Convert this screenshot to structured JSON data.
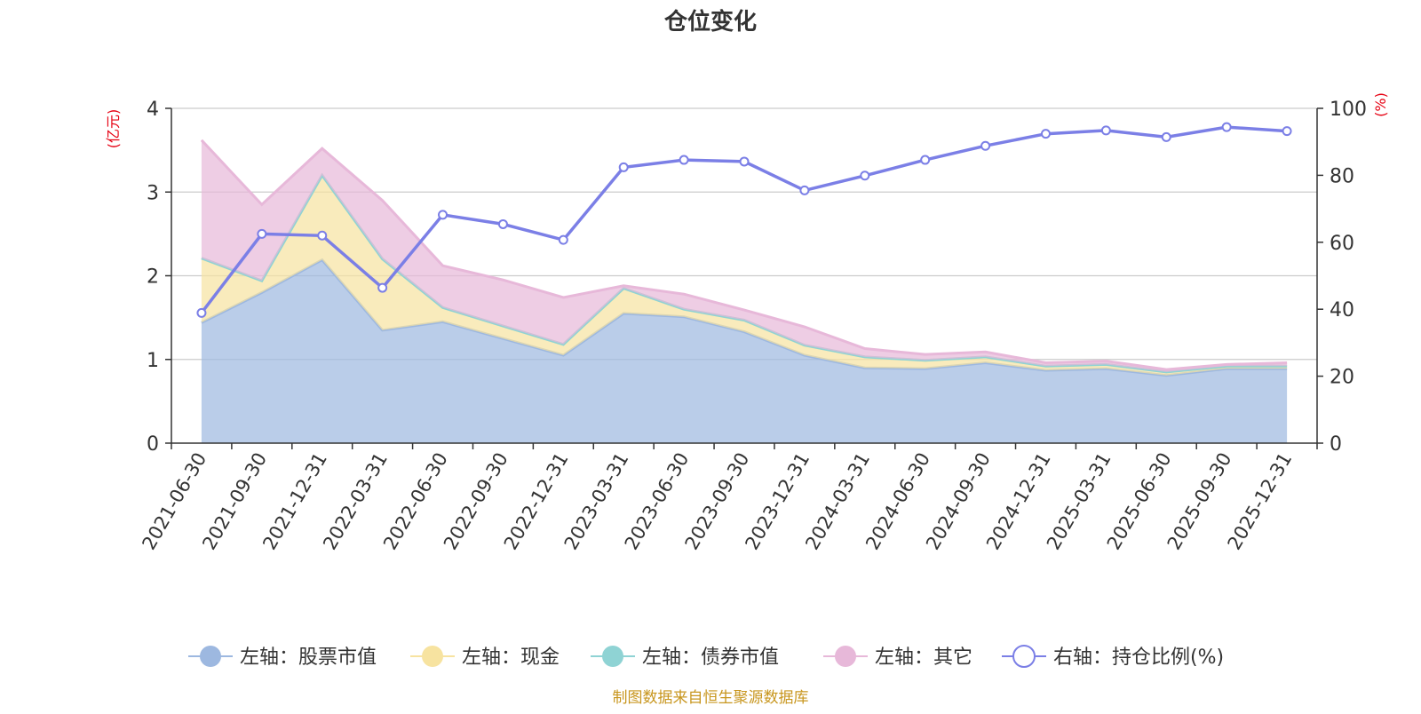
{
  "chart_data": {
    "type": "area",
    "title": "仓位变化",
    "source": "制图数据来自恒生聚源数据库",
    "left_unit": "(亿元)",
    "right_unit": "(%)",
    "ylim_left": [
      0,
      4
    ],
    "ylim_right": [
      0,
      100
    ],
    "yticks_left": [
      "0",
      "1",
      "2",
      "3",
      "4"
    ],
    "yticks_right": [
      "0",
      "20",
      "40",
      "60",
      "80",
      "100"
    ],
    "categories": [
      "2021-06-30",
      "2021-09-30",
      "2021-12-31",
      "2022-03-31",
      "2022-06-30",
      "2022-09-30",
      "2022-12-31",
      "2023-03-31",
      "2023-06-30",
      "2023-09-30",
      "2023-12-31",
      "2024-03-31",
      "2024-06-30",
      "2024-09-30",
      "2024-12-31",
      "2025-03-31",
      "2025-06-30",
      "2025-09-30",
      "2025-12-31"
    ],
    "series": [
      {
        "name": "左轴：股票市值",
        "axis": "left",
        "color": "#9db8e0",
        "values": [
          1.44,
          1.8,
          2.19,
          1.35,
          1.45,
          1.25,
          1.05,
          1.55,
          1.51,
          1.33,
          1.05,
          0.9,
          0.89,
          0.96,
          0.87,
          0.89,
          0.81,
          0.89,
          0.89
        ]
      },
      {
        "name": "左轴：现金",
        "axis": "left",
        "color": "#f7e3a0",
        "values": [
          0.77,
          0.14,
          1.01,
          0.85,
          0.17,
          0.15,
          0.13,
          0.3,
          0.09,
          0.14,
          0.12,
          0.13,
          0.1,
          0.07,
          0.05,
          0.05,
          0.04,
          0.03,
          0.03
        ]
      },
      {
        "name": "左轴：债券市值",
        "axis": "left",
        "color": "#8fd3d4",
        "values": [
          0,
          0,
          0,
          0,
          0,
          0,
          0,
          0,
          0,
          0,
          0,
          0,
          0,
          0,
          0,
          0,
          0,
          0,
          0
        ]
      },
      {
        "name": "左轴：其它",
        "axis": "left",
        "color": "#e7b8d9",
        "values": [
          1.41,
          0.91,
          0.32,
          0.7,
          0.5,
          0.55,
          0.56,
          0.03,
          0.18,
          0.12,
          0.22,
          0.1,
          0.07,
          0.06,
          0.04,
          0.04,
          0.03,
          0.02,
          0.04
        ]
      },
      {
        "name": "右轴：持仓比例(%)",
        "axis": "right",
        "color": "#7b7fe6",
        "values": [
          38.9,
          62.5,
          62.0,
          46.4,
          68.2,
          65.4,
          60.7,
          82.4,
          84.6,
          84.1,
          75.5,
          79.9,
          84.6,
          88.8,
          92.4,
          93.4,
          91.4,
          94.4,
          93.2
        ]
      }
    ]
  }
}
